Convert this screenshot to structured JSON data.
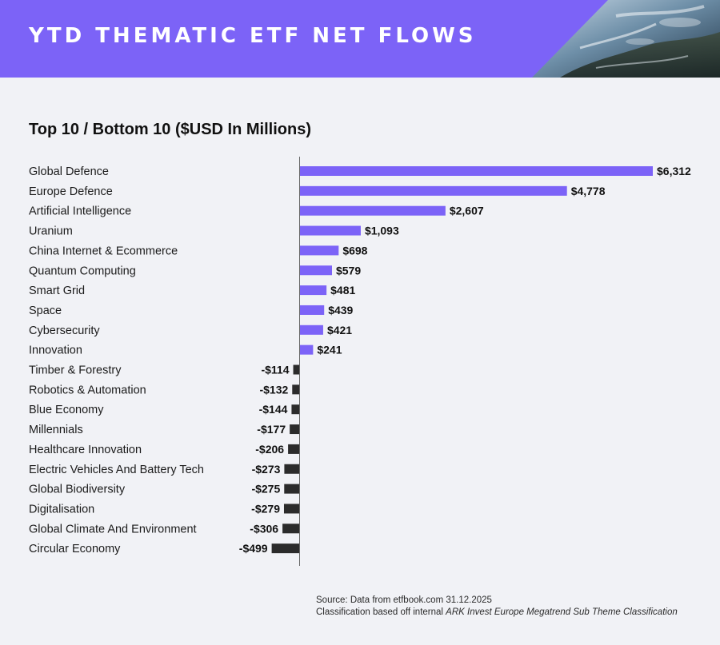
{
  "header": {
    "title": "YTD THEMATIC ETF NET FLOWS"
  },
  "colors": {
    "accent": "#7c63f7",
    "positive": "#7c63f7",
    "negative": "#2b2b2b",
    "background": "#f1f2f6"
  },
  "chart_data": {
    "type": "bar",
    "orientation": "horizontal",
    "title": "Top 10 / Bottom 10 ($USD In Millions)",
    "xlabel": "",
    "ylabel": "",
    "grid": false,
    "categories": [
      "Global Defence",
      "Europe Defence",
      "Artificial Intelligence",
      "Uranium",
      "China Internet & Ecommerce",
      "Quantum Computing",
      "Smart Grid",
      "Space",
      "Cybersecurity",
      "Innovation",
      "Timber & Forestry",
      "Robotics & Automation",
      "Blue Economy",
      "Millennials",
      "Healthcare Innovation",
      "Electric Vehicles And Battery Tech",
      "Global Biodiversity",
      "Digitalisation",
      "Global Climate And Environment",
      "Circular Economy"
    ],
    "values": [
      6312,
      4778,
      2607,
      1093,
      698,
      579,
      481,
      439,
      421,
      241,
      -114,
      -132,
      -144,
      -177,
      -206,
      -273,
      -275,
      -279,
      -306,
      -499
    ],
    "value_labels": [
      "$6,312",
      "$4,778",
      "$2,607",
      "$1,093",
      "$698",
      "$579",
      "$481",
      "$439",
      "$421",
      "$241",
      "-$114",
      "-$132",
      "-$144",
      "-$177",
      "-$206",
      "-$273",
      "-$275",
      "-$279",
      "-$306",
      "-$499"
    ]
  },
  "footer": {
    "source_line": "Source: Data from etfbook.com 31.12.2025",
    "classification_prefix": "Classification based off internal ",
    "classification_emphasis": "ARK Invest Europe Megatrend Sub Theme Classification"
  }
}
